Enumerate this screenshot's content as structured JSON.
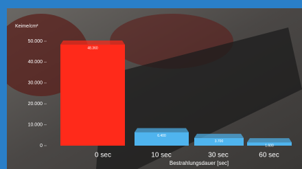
{
  "chart_data": {
    "type": "bar",
    "y_label": "Keime/cm²",
    "x_label": "Bestrahlungsdauer [sec]",
    "categories": [
      "0 sec",
      "10 sec",
      "30 sec",
      "60 sec"
    ],
    "values": [
      48360,
      6400,
      3700,
      1600
    ],
    "value_labels": [
      "48.360",
      "6.400",
      "3.700",
      "1.600"
    ],
    "colors": [
      "#ff2a1a",
      "#4fb4ee",
      "#4fb4ee",
      "#4fb4ee"
    ],
    "ylim": [
      0,
      50000
    ],
    "yticks": [
      0,
      {
        "value": 10000,
        "label": "10.000"
      },
      {
        "value": 20000,
        "label": "20.000"
      },
      {
        "value": 30000,
        "label": "30.000"
      },
      {
        "value": 40000,
        "label": "40.000"
      },
      {
        "value": 50000,
        "label": "50.000"
      }
    ]
  }
}
